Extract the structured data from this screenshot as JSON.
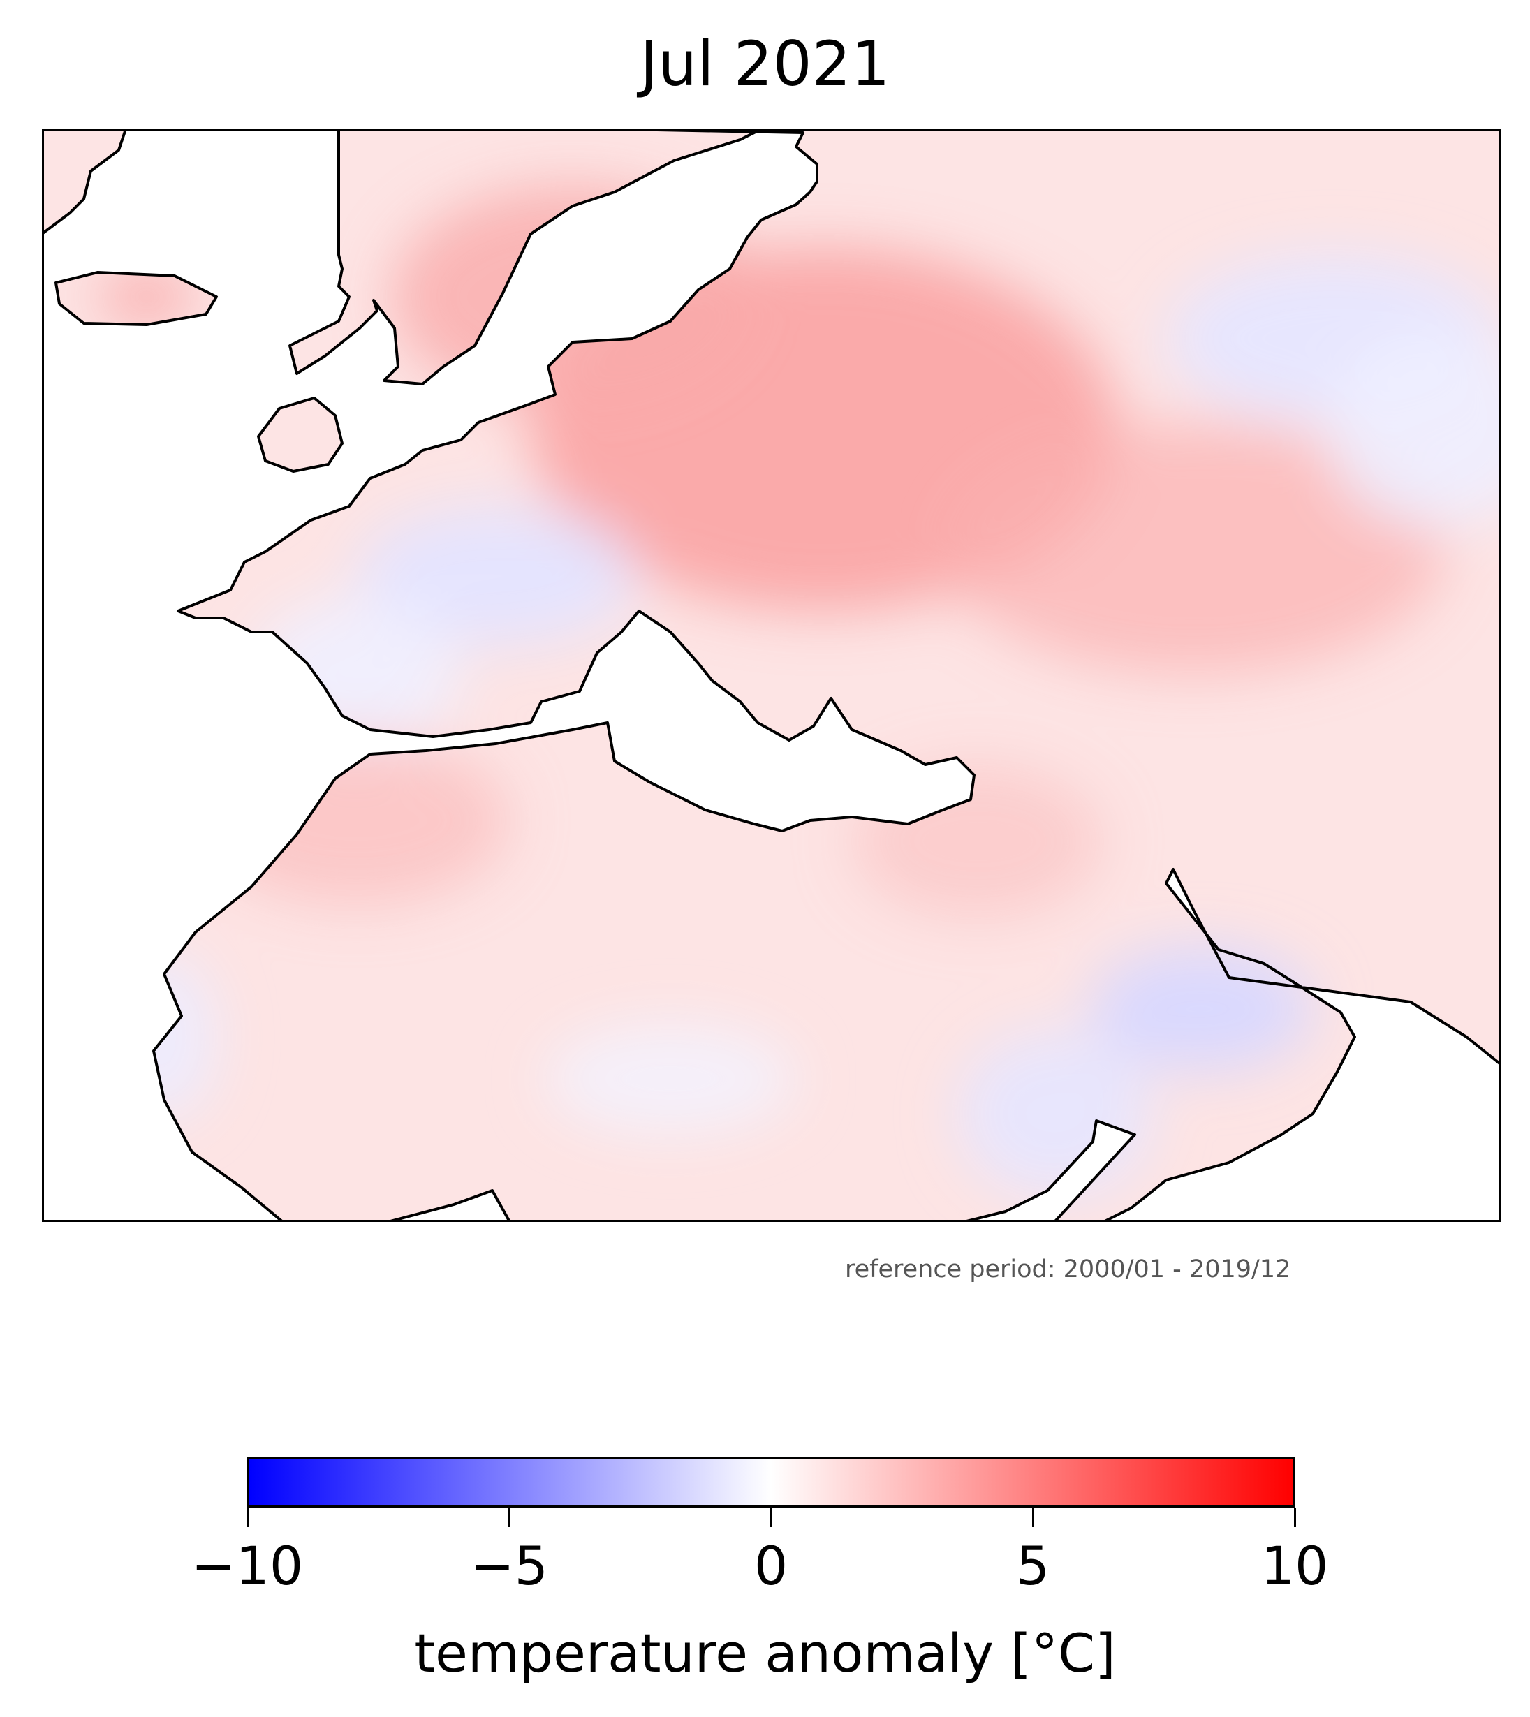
{
  "title": "Jul 2021",
  "reference_note": "reference period: 2000/01 - 2019/12",
  "colorbar": {
    "label": "temperature anomaly [°C]",
    "ticks": [
      "−10",
      "−5",
      "0",
      "5",
      "10"
    ],
    "tick_values": [
      -10,
      -5,
      0,
      5,
      10
    ],
    "range": [
      -10,
      10
    ],
    "colormap": "bwr",
    "colors": {
      "min": "#0000ff",
      "mid": "#ffffff",
      "max": "#ff0000"
    }
  },
  "map": {
    "region": "Europe, North Africa and Middle East",
    "variable": "temperature anomaly",
    "units": "°C",
    "ocean_color": "#ffffff",
    "coastline_color": "#000000"
  }
}
